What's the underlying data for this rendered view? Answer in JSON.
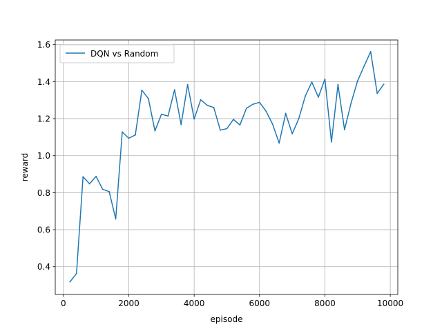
{
  "chart_data": {
    "type": "line",
    "title": "",
    "xlabel": "episode",
    "ylabel": "reward",
    "xlim": [
      -250,
      10230
    ],
    "ylim": [
      0.25,
      1.625
    ],
    "xticks": [
      0,
      2000,
      4000,
      6000,
      8000,
      10000
    ],
    "xtick_labels": [
      "0",
      "2000",
      "4000",
      "6000",
      "8000",
      "10000"
    ],
    "yticks": [
      0.4,
      0.6,
      0.8,
      1.0,
      1.2,
      1.4,
      1.6
    ],
    "ytick_labels": [
      "0.4",
      "0.6",
      "0.8",
      "1.0",
      "1.2",
      "1.4",
      "1.6"
    ],
    "grid": true,
    "legend_position": "upper-left",
    "series": [
      {
        "name": "DQN vs Random",
        "color": "#1f77b4",
        "x": [
          200,
          400,
          600,
          800,
          1000,
          1200,
          1400,
          1600,
          1800,
          2000,
          2200,
          2400,
          2600,
          2800,
          3000,
          3200,
          3400,
          3600,
          3800,
          4000,
          4200,
          4400,
          4600,
          4800,
          5000,
          5200,
          5400,
          5600,
          5800,
          6000,
          6200,
          6400,
          6600,
          6800,
          7000,
          7200,
          7400,
          7600,
          7800,
          8000,
          8200,
          8400,
          8600,
          8800,
          9000,
          9200,
          9400,
          9600,
          9800
        ],
        "y": [
          0.318,
          0.363,
          0.886,
          0.848,
          0.888,
          0.818,
          0.806,
          0.658,
          1.128,
          1.094,
          1.112,
          1.354,
          1.308,
          1.134,
          1.224,
          1.214,
          1.356,
          1.168,
          1.384,
          1.198,
          1.302,
          1.272,
          1.26,
          1.138,
          1.146,
          1.196,
          1.166,
          1.256,
          1.278,
          1.288,
          1.24,
          1.17,
          1.068,
          1.228,
          1.118,
          1.2,
          1.322,
          1.398,
          1.316,
          1.414,
          1.074,
          1.384,
          1.14,
          1.284,
          1.404,
          1.484,
          1.562,
          1.336,
          1.386
        ]
      }
    ]
  }
}
